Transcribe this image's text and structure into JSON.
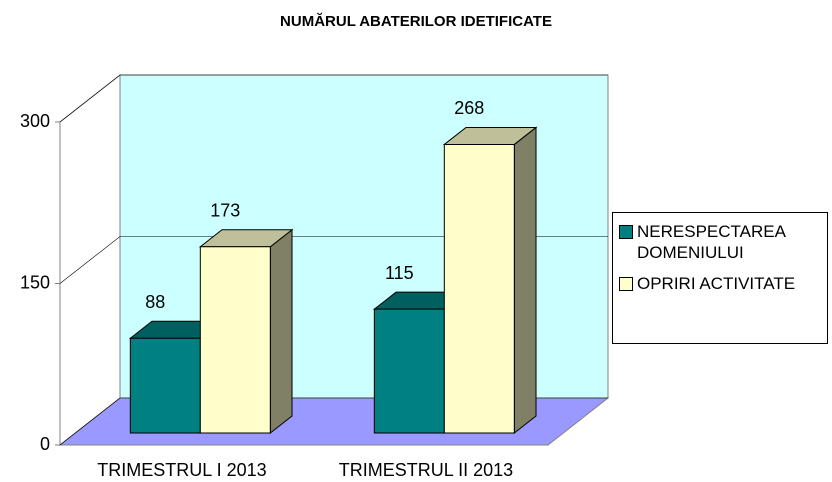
{
  "chart_data": {
    "type": "bar3d",
    "title": "NUMĂRUL ABATERILOR IDETIFICATE",
    "categories": [
      "TRIMESTRUL I 2013",
      "TRIMESTRUL II 2013"
    ],
    "series": [
      {
        "name": "NERESPECTAREA DOMENIULUI",
        "color": "#008080",
        "values": [
          88,
          115
        ]
      },
      {
        "name": "OPRIRI ACTIVITATE",
        "color": "#ffffcc",
        "values": [
          173,
          268
        ]
      }
    ],
    "ylim": [
      0,
      300
    ],
    "yticks": [
      0,
      150,
      300
    ],
    "grid": true,
    "legend": "right"
  }
}
